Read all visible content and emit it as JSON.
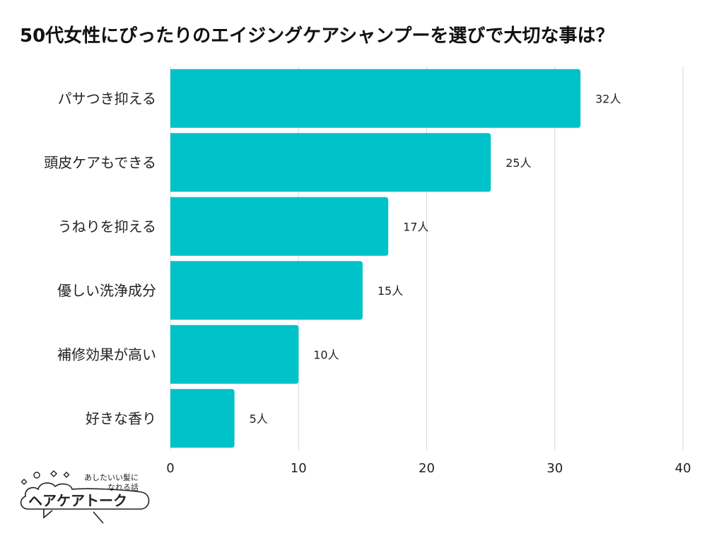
{
  "title": "50代女性にぴったりのエイジングケアシャンプーを選びで大切な事は？",
  "colors": {
    "bar": "#00c2c9",
    "grid": "#d9d9d9",
    "text": "#222222"
  },
  "chart_data": {
    "type": "bar",
    "orientation": "horizontal",
    "title": "50代女性にぴったりのエイジングケアシャンプーを選びで大切な事は？",
    "categories": [
      "パサつき抑える",
      "頭皮ケアもできる",
      "うねりを抑える",
      "優しい洗浄成分",
      "補修効果が高い",
      "好きな香り"
    ],
    "values": [
      32,
      25,
      17,
      15,
      10,
      5
    ],
    "data_labels": [
      "32人",
      "25人",
      "17人",
      "15人",
      "10人",
      "5人"
    ],
    "xlim": [
      0,
      40
    ],
    "xticks": [
      0,
      10,
      20,
      30,
      40
    ],
    "xtick_labels": [
      "0",
      "10",
      "20",
      "30",
      "40"
    ],
    "xlabel": "",
    "ylabel": "",
    "grid": "vertical",
    "legend": "none"
  },
  "logo": {
    "tagline_line1": "あしたいい髪に",
    "tagline_line2": "なれる話",
    "name": "ヘアケアトーク"
  }
}
